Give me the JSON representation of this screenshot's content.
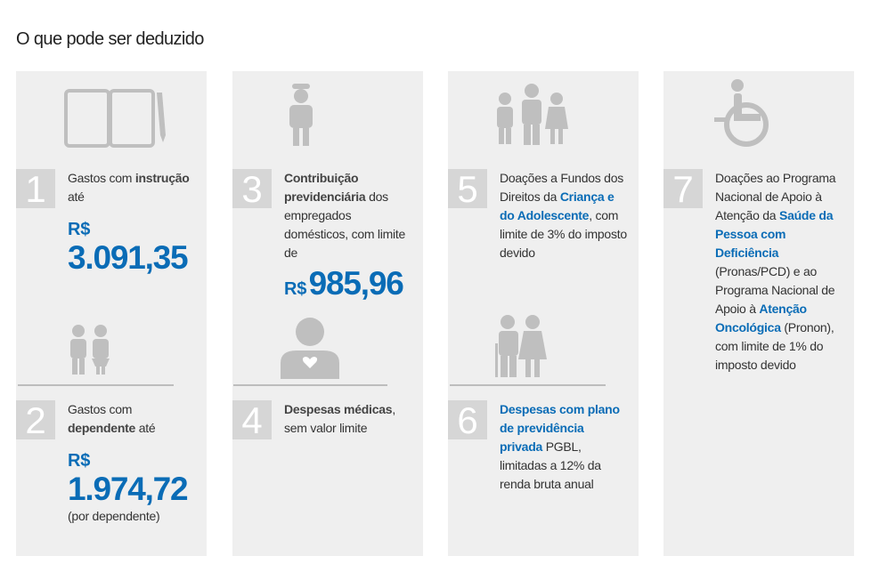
{
  "title": "O que pode ser deduzido",
  "items": [
    {
      "number": "1",
      "text": [
        {
          "text": "Gastos com ",
          "style": "plain"
        },
        {
          "text": "instrução",
          "style": "bold"
        },
        {
          "text": " até",
          "style": "plain"
        }
      ],
      "amount": {
        "currency": "R$",
        "value": "3.091,35",
        "layout": "stacked"
      }
    },
    {
      "number": "2",
      "text": [
        {
          "text": "Gastos com ",
          "style": "plain"
        },
        {
          "text": "dependente",
          "style": "bold"
        },
        {
          "text": " até",
          "style": "plain"
        }
      ],
      "amount": {
        "currency": "R$",
        "value": "1.974,72",
        "layout": "stacked"
      },
      "note": "(por dependente)"
    },
    {
      "number": "3",
      "text": [
        {
          "text": "Contribuição previdenciária",
          "style": "bold"
        },
        {
          "text": " dos empregados domésticos, com limite de",
          "style": "plain"
        }
      ],
      "amount": {
        "currency": "R$",
        "value": "985,96",
        "layout": "inline"
      }
    },
    {
      "number": "4",
      "text": [
        {
          "text": "Despesas médicas",
          "style": "bold"
        },
        {
          "text": ", sem valor limite",
          "style": "plain"
        }
      ]
    },
    {
      "number": "5",
      "text": [
        {
          "text": "Doações a Fundos dos Direitos da ",
          "style": "plain"
        },
        {
          "text": "Criança e do Adolescente",
          "style": "blue"
        },
        {
          "text": ", com limite de 3% do imposto devido",
          "style": "plain"
        }
      ]
    },
    {
      "number": "6",
      "text": [
        {
          "text": "Despesas com plano de previdência privada",
          "style": "blue"
        },
        {
          "text": " PGBL, limitadas a 12% da renda bruta anual",
          "style": "plain"
        }
      ]
    },
    {
      "number": "7",
      "text": [
        {
          "text": "Doações ao Programa Nacional de Apoio à Atenção da ",
          "style": "plain"
        },
        {
          "text": "Saúde da Pessoa com Deficiência",
          "style": "blue"
        },
        {
          "text": " (Pronas/PCD) e ao Programa Nacional de Apoio à ",
          "style": "plain"
        },
        {
          "text": "Atenção Oncológica",
          "style": "blue"
        },
        {
          "text": " (Pronon), com limite de 1% do imposto devido",
          "style": "plain"
        }
      ]
    }
  ]
}
